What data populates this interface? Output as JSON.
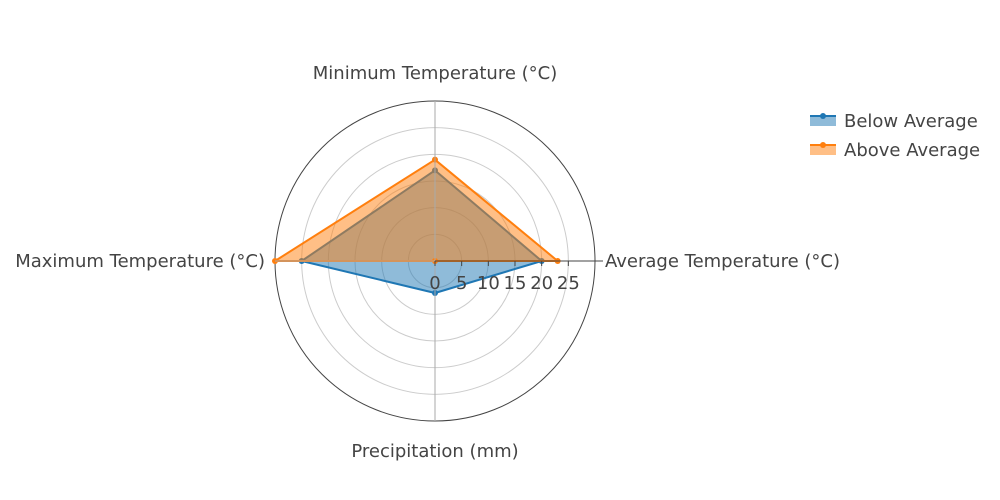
{
  "chart_data": {
    "type": "radar",
    "axes": [
      "Average Temperature (°C)",
      "Minimum Temperature (°C)",
      "Maximum Temperature (°C)",
      "Precipitation (mm)"
    ],
    "radial_range": [
      0,
      30
    ],
    "radial_ticks": [
      0,
      5,
      10,
      15,
      20,
      25
    ],
    "legend_position": "top-right",
    "series": [
      {
        "name": "Below Average",
        "color": "#1f77b4",
        "values": [
          20,
          17,
          25,
          6
        ]
      },
      {
        "name": "Above Average",
        "color": "#ff7f0e",
        "values": [
          23,
          19,
          30,
          0
        ]
      }
    ]
  }
}
